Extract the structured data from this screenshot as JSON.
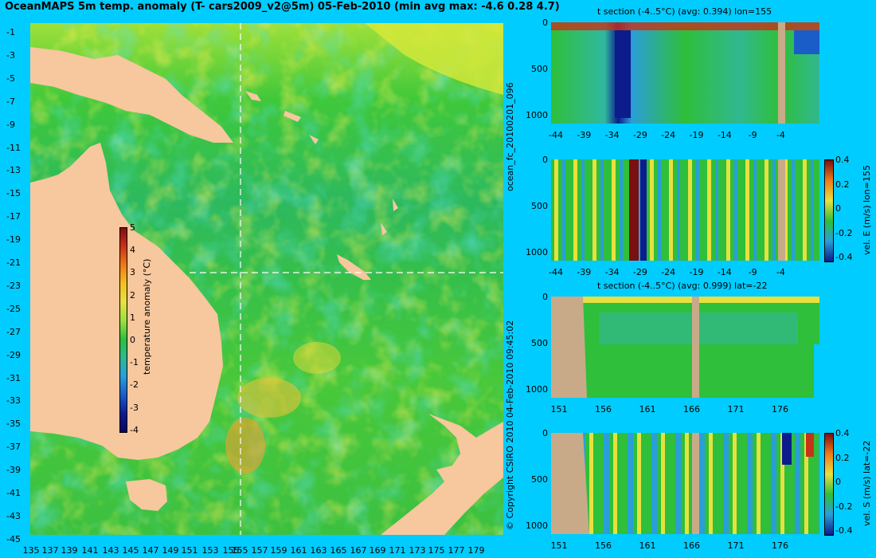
{
  "title": "OceanMAPS 5m temp. anomaly (T- cars2009_v2@5m) 05-Feb-2010 (min avg max: -4.6 0.28 4.7)",
  "map": {
    "lat_ticks": [
      "-1",
      "-3",
      "-5",
      "-7",
      "-9",
      "-11",
      "-13",
      "-15",
      "-17",
      "-19",
      "-21",
      "-23",
      "-25",
      "-27",
      "-29",
      "-31",
      "-33",
      "-35",
      "-37",
      "-39",
      "-41",
      "-43",
      "-45"
    ],
    "lon_ticks": [
      "135",
      "137",
      "139",
      "141",
      "143",
      "145",
      "147",
      "149",
      "151",
      "153",
      "155",
      "155",
      "157",
      "159",
      "161",
      "163",
      "165",
      "167",
      "169",
      "171",
      "173",
      "175",
      "177",
      "179"
    ],
    "section_lon": "155",
    "section_lat": "-22",
    "colorbar": {
      "label": "temperature anomaly (°C)",
      "ticks": [
        "5",
        "4",
        "3",
        "2",
        "1",
        "0",
        "-1",
        "-2",
        "-3",
        "-4"
      ]
    }
  },
  "panels": {
    "p1": {
      "title": "t section (-4..5°C) (avg: 0.394) lon=155",
      "x_ticks": [
        "-44",
        "-39",
        "-34",
        "-29",
        "-24",
        "-19",
        "-14",
        "-9",
        "-4"
      ],
      "y_ticks": [
        "0",
        "500",
        "1000"
      ]
    },
    "p2": {
      "x_ticks": [
        "-44",
        "-39",
        "-34",
        "-29",
        "-24",
        "-19",
        "-14",
        "-9",
        "-4"
      ],
      "y_ticks": [
        "0",
        "500",
        "1000"
      ],
      "side_label": "vel. E (m/s) lon=155",
      "cb_ticks": [
        "0.4",
        "0.2",
        "0",
        "-0.2",
        "-0.4"
      ]
    },
    "p3": {
      "title": "t section (-4..5°C) (avg: 0.999) lat=-22",
      "x_ticks": [
        "151",
        "156",
        "161",
        "166",
        "171",
        "176"
      ],
      "y_ticks": [
        "0",
        "500",
        "1000"
      ]
    },
    "p4": {
      "x_ticks": [
        "151",
        "156",
        "161",
        "166",
        "171",
        "176"
      ],
      "y_ticks": [
        "0",
        "500",
        "1000"
      ],
      "side_label": "vel. S (m/s) lat=-22",
      "cb_ticks": [
        "0.4",
        "0.2",
        "0",
        "-0.2",
        "-0.4"
      ]
    }
  },
  "side_text": {
    "run_id": "ocean_fc_20100201_096",
    "copyright": "© Copyright CSIRO 2010   04-Feb-2010 09:45:02"
  },
  "colors": {
    "background": "#00ccff",
    "land": "#f7c79e",
    "section_land": "#c8aa88",
    "ocean_base": "#2fbf3a"
  }
}
